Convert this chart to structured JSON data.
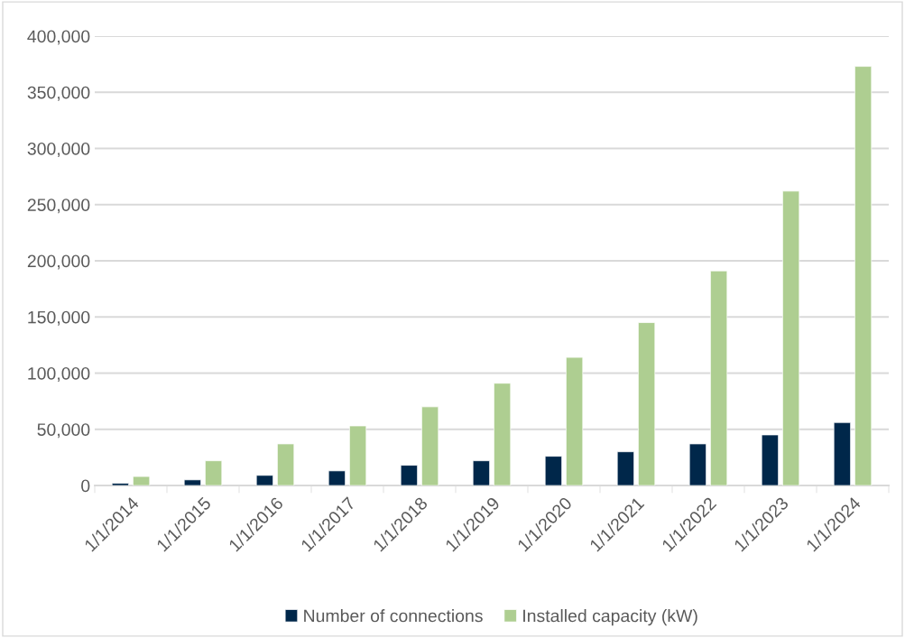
{
  "chart_data": {
    "type": "bar",
    "categories": [
      "1/1/2014",
      "1/1/2015",
      "1/1/2016",
      "1/1/2017",
      "1/1/2018",
      "1/1/2019",
      "1/1/2020",
      "1/1/2021",
      "1/1/2022",
      "1/1/2023",
      "1/1/2024"
    ],
    "series": [
      {
        "name": "Number of connections",
        "color": "#00274a",
        "values": [
          2000,
          5000,
          9000,
          13000,
          18000,
          22000,
          26000,
          30000,
          37000,
          45000,
          56000
        ]
      },
      {
        "name": "Installed capacity (kW)",
        "color": "#aece91",
        "values": [
          8000,
          22000,
          37000,
          53000,
          70000,
          91000,
          114000,
          145000,
          191000,
          262000,
          373000
        ]
      }
    ],
    "ylim": [
      0,
      400000
    ],
    "yticks": [
      {
        "value": 0,
        "label": "0"
      },
      {
        "value": 50000,
        "label": "50,000"
      },
      {
        "value": 100000,
        "label": "100,000"
      },
      {
        "value": 150000,
        "label": "150,000"
      },
      {
        "value": 200000,
        "label": "200,000"
      },
      {
        "value": 250000,
        "label": "250,000"
      },
      {
        "value": 300000,
        "label": "300,000"
      },
      {
        "value": 350000,
        "label": "350,000"
      },
      {
        "value": 400000,
        "label": "400,000"
      }
    ],
    "grid": "y",
    "legend": "bottom"
  }
}
